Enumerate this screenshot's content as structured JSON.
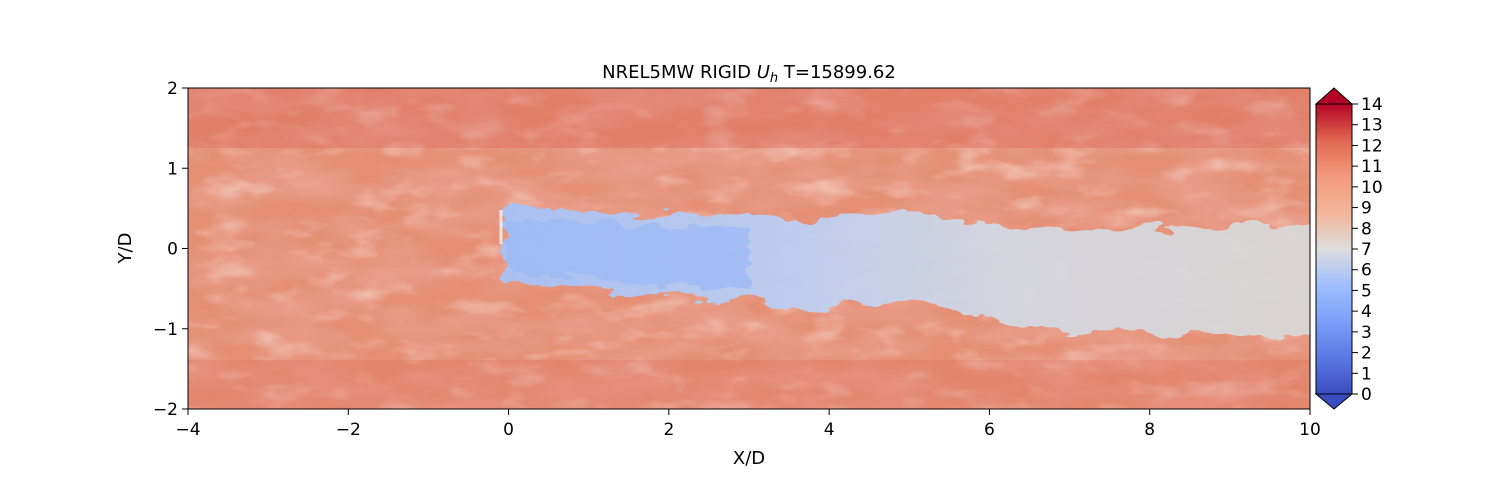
{
  "chart_data": {
    "type": "heatmap",
    "title": {
      "prefix": "NREL5MW RIGID ",
      "symbol": "U",
      "subscript": "h",
      "suffix": " T=15899.62"
    },
    "xlabel": "X/D",
    "ylabel": "Y/D",
    "xlim": [
      -4,
      10
    ],
    "ylim": [
      -2,
      2
    ],
    "xticks": [
      -4,
      -2,
      0,
      2,
      4,
      6,
      8,
      10
    ],
    "yticks": [
      -2,
      -1,
      0,
      1,
      2
    ],
    "xtick_labels": [
      "−4",
      "−2",
      "0",
      "2",
      "4",
      "6",
      "8",
      "10"
    ],
    "ytick_labels": [
      "−2",
      "−1",
      "0",
      "1",
      "2"
    ],
    "colorbar": {
      "min": 0,
      "max": 14,
      "ticks": [
        0,
        1,
        2,
        3,
        4,
        5,
        6,
        7,
        8,
        9,
        10,
        11,
        12,
        13,
        14
      ],
      "colormap": "coolwarm",
      "extend": "both",
      "colors": {
        "low": "#3b4cc0",
        "mid": "#dddddd",
        "high": "#b40426"
      }
    },
    "field_description_values": {
      "freestream": 11,
      "wake_near_min": 4.5,
      "wake_far": 7.5
    },
    "wake_centerline": [
      {
        "x": 0,
        "y": 0.0,
        "u": 4.5
      },
      {
        "x": 1,
        "y": 0.0,
        "u": 4.8
      },
      {
        "x": 2,
        "y": -0.1,
        "u": 5.2
      },
      {
        "x": 3,
        "y": -0.1,
        "u": 5.8
      },
      {
        "x": 4,
        "y": -0.2,
        "u": 6.5
      },
      {
        "x": 5,
        "y": -0.1,
        "u": 6.8
      },
      {
        "x": 6,
        "y": -0.3,
        "u": 7.2
      },
      {
        "x": 7,
        "y": -0.4,
        "u": 7.5
      },
      {
        "x": 8,
        "y": -0.4,
        "u": 7.5
      },
      {
        "x": 9,
        "y": -0.4,
        "u": 7.6
      },
      {
        "x": 10,
        "y": -0.4,
        "u": 7.7
      }
    ]
  }
}
